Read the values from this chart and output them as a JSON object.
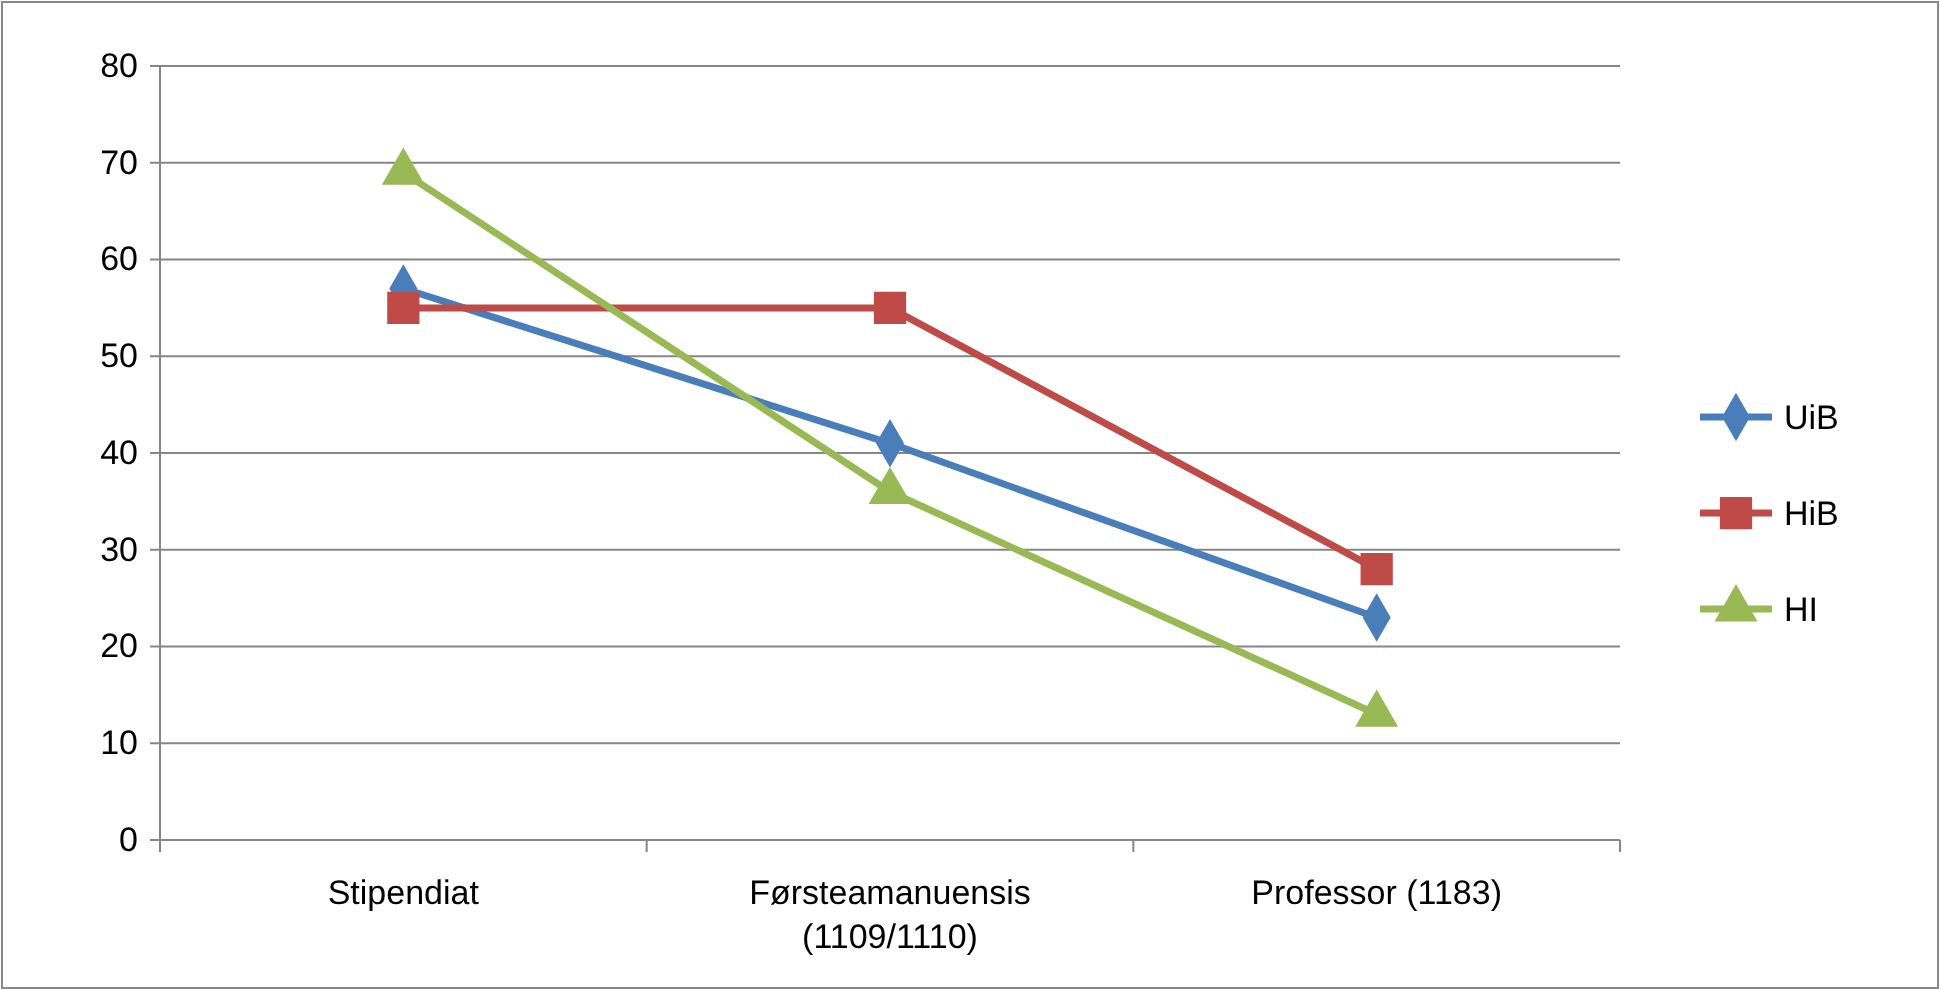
{
  "chart_data": {
    "type": "line",
    "categories": [
      "Stipendiat",
      "Førsteamanuensis (1109/1110)",
      "Professor (1183)"
    ],
    "series": [
      {
        "name": "UiB",
        "color": "#4a7ebb",
        "values": [
          57,
          41,
          23
        ],
        "marker": "diamond"
      },
      {
        "name": "HiB",
        "color": "#be4b48",
        "values": [
          55,
          55,
          28
        ],
        "marker": "square"
      },
      {
        "name": "HI",
        "color": "#98b954",
        "values": [
          69,
          36,
          13
        ],
        "marker": "triangle"
      }
    ],
    "ylim": [
      0,
      80
    ],
    "yticks": [
      0,
      10,
      20,
      30,
      40,
      50,
      60,
      70,
      80
    ],
    "grid": "y",
    "legend": "right"
  }
}
